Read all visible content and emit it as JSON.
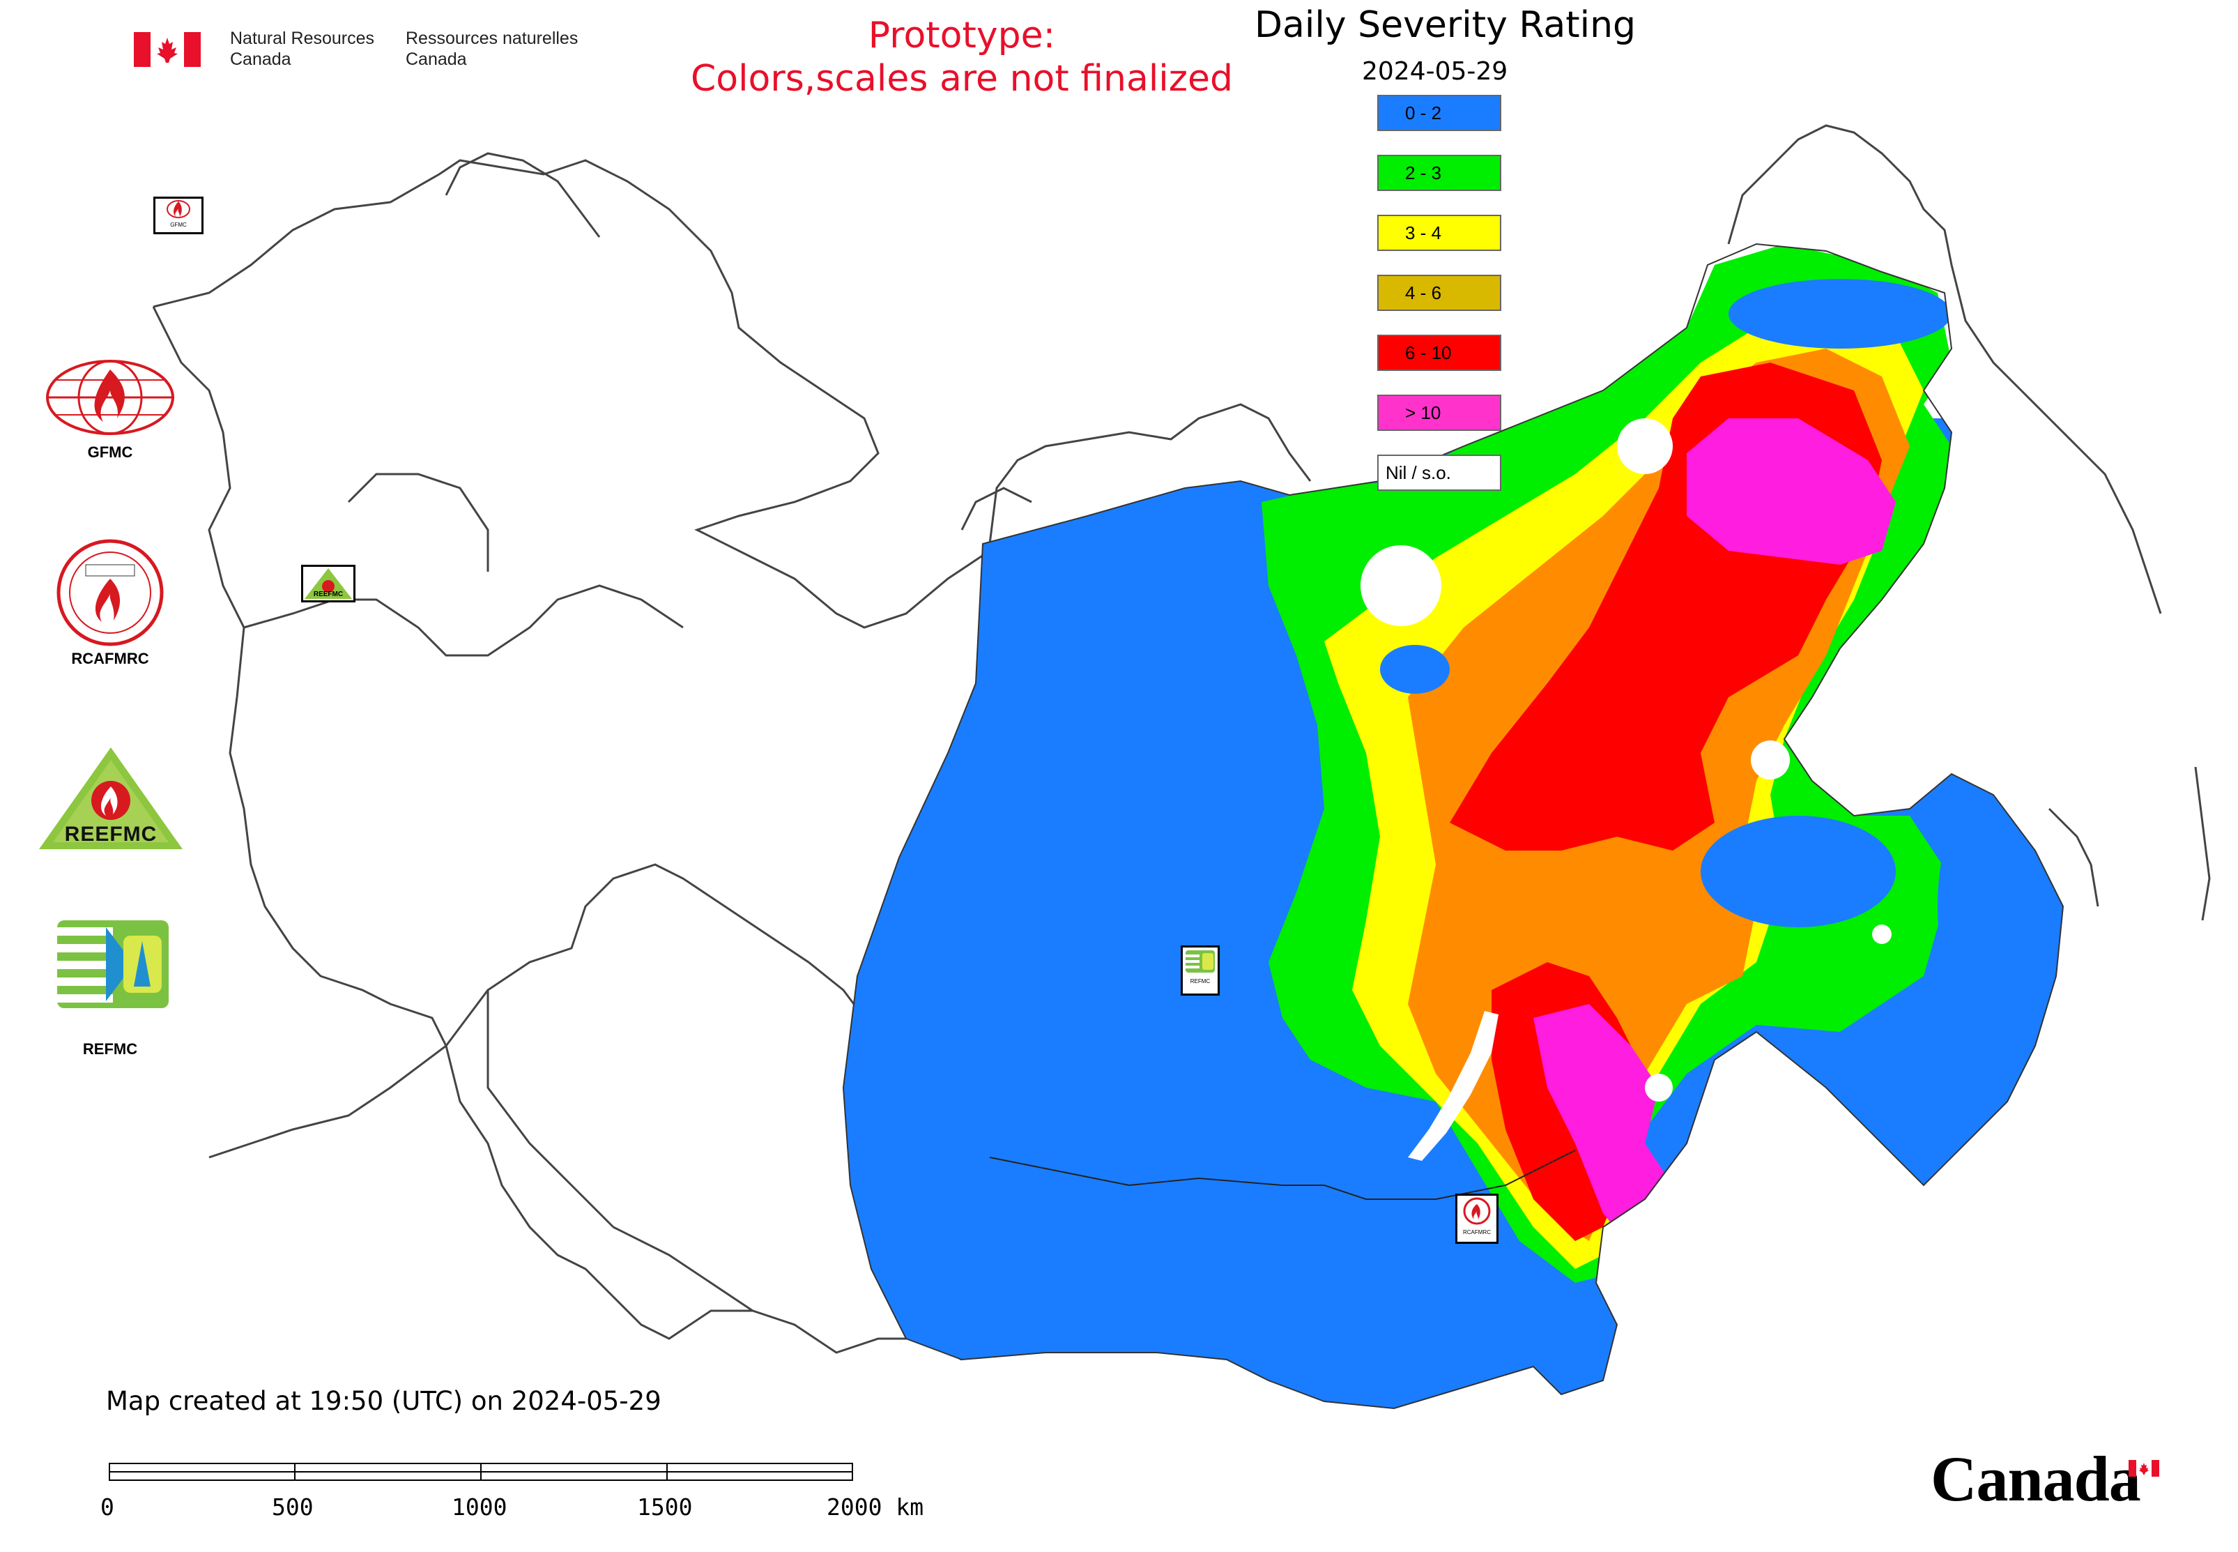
{
  "header": {
    "org_en_line1": "Natural Resources",
    "org_en_line2": "Canada",
    "org_fr_line1": "Ressources naturelles",
    "org_fr_line2": "Canada",
    "prototype_line1": "Prototype:",
    "prototype_line2": "Colors,scales are not finalized",
    "title": "Daily Severity Rating",
    "date": "2024-05-29"
  },
  "legend": {
    "items": [
      {
        "label": "0 - 2",
        "color": "#1a7dff"
      },
      {
        "label": "2 - 3",
        "color": "#00ee00"
      },
      {
        "label": "3 - 4",
        "color": "#ffff00"
      },
      {
        "label": "4 - 6",
        "color": "#d9b800"
      },
      {
        "label": "6 - 10",
        "color": "#ff0000"
      },
      {
        "label": "> 10",
        "color": "#ff33cc"
      },
      {
        "label": "Nil / s.o.",
        "color": "#ffffff"
      }
    ]
  },
  "side_logos": [
    {
      "label": "GFMC",
      "icon": "gfmc-logo"
    },
    {
      "label": "RCAFMRC",
      "icon": "rcafmrc-logo"
    },
    {
      "label": "",
      "icon": "reefmc-logo",
      "wordmark": "REEFMC"
    },
    {
      "label": "REFMC",
      "icon": "refmc-logo"
    }
  ],
  "map_markers": [
    {
      "icon": "gfmc-marker",
      "text": "GFMC"
    },
    {
      "icon": "reefmc-marker",
      "text": "REEFMC"
    },
    {
      "icon": "refmc-marker",
      "text": "REFMC"
    },
    {
      "icon": "rcafmrc-marker",
      "text": "RCAFMRC"
    }
  ],
  "footer": {
    "created": "Map created at 19:50 (UTC) on 2024-05-29",
    "scale_labels": [
      "0",
      "500",
      "1000",
      "1500",
      "2000 km"
    ],
    "wordmark": "Canada"
  },
  "colors": {
    "title_red": "#e8102a",
    "flag_red": "#e8102a",
    "outline": "#444444"
  }
}
